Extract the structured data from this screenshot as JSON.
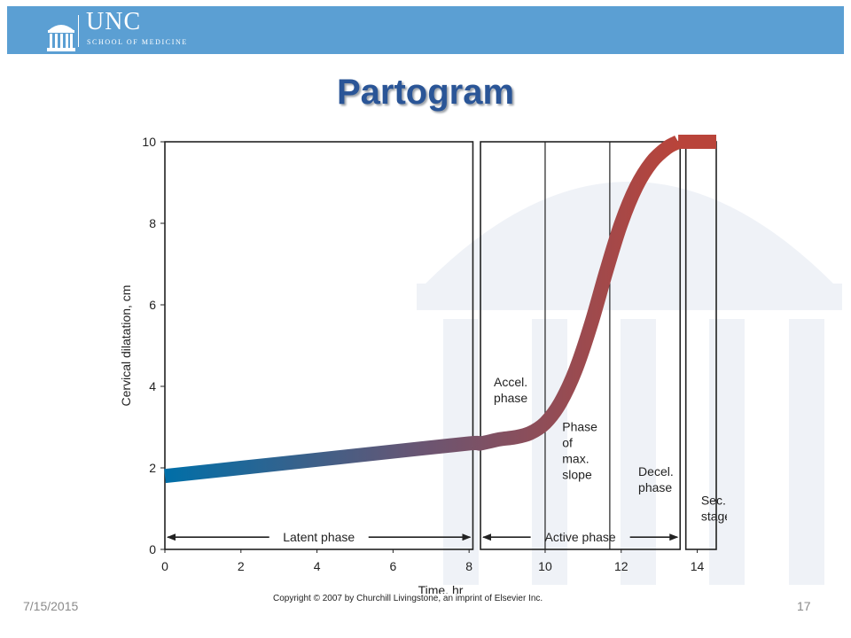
{
  "header": {
    "logo_main": "UNC",
    "logo_sub": "SCHOOL OF MEDICINE"
  },
  "slide": {
    "title": "Partogram",
    "date": "7/15/2015",
    "page_number": "17",
    "copyright": "Copyright © 2007 by Churchill Livingstone, an imprint of Elsevier Inc."
  },
  "colors": {
    "banner": "#5b9fd3",
    "title": "#2a5597",
    "curve_start": "#006fa8",
    "curve_end": "#b9443a"
  },
  "chart_data": {
    "type": "line",
    "xlabel": "Time, hr",
    "ylabel": "Cervical dilatation, cm",
    "xlim": [
      0,
      14.5
    ],
    "ylim": [
      0,
      10
    ],
    "x_ticks": [
      0,
      2,
      4,
      6,
      8,
      10,
      12,
      14
    ],
    "y_ticks": [
      0,
      2,
      4,
      6,
      8,
      10
    ],
    "grid": false,
    "series": [
      {
        "x": [
          0,
          2,
          4,
          6,
          8,
          8.3,
          8.8,
          9.2,
          9.6,
          10,
          10.4,
          10.8,
          11.2,
          11.6,
          12,
          12.4,
          12.8,
          13.2,
          13.5
        ],
        "y": [
          1.8,
          2.0,
          2.2,
          2.4,
          2.6,
          2.6,
          2.7,
          2.75,
          2.85,
          3.1,
          3.6,
          4.4,
          5.5,
          6.8,
          8.0,
          8.9,
          9.5,
          9.85,
          10
        ]
      },
      {
        "x": [
          13.5,
          13.75,
          14.0,
          14.25,
          14.5
        ],
        "y": [
          10,
          10,
          10,
          10,
          10
        ]
      }
    ],
    "panels": [
      {
        "x_start": 0,
        "x_end": 8.1
      },
      {
        "x_start": 8.3,
        "x_end": 13.55
      },
      {
        "x_start": 13.7,
        "x_end": 14.5
      }
    ],
    "dividers": [
      10,
      11.7
    ],
    "annotations": [
      {
        "lines": [
          "Accel.",
          "phase"
        ],
        "x": 8.65,
        "y": 4.0
      },
      {
        "lines": [
          "Phase",
          "of",
          "max.",
          "slope"
        ],
        "x": 10.45,
        "y": 2.9
      },
      {
        "lines": [
          "Decel.",
          "phase"
        ],
        "x": 12.45,
        "y": 1.8
      },
      {
        "lines": [
          "Sec.",
          "stage"
        ],
        "x": 14.1,
        "y": 1.1
      }
    ],
    "ranges": [
      {
        "label": "Latent phase",
        "x_start": 0,
        "x_end": 8.1,
        "y": 0.3
      },
      {
        "label": "Active phase",
        "x_start": 8.3,
        "x_end": 13.55,
        "y": 0.3
      }
    ]
  }
}
